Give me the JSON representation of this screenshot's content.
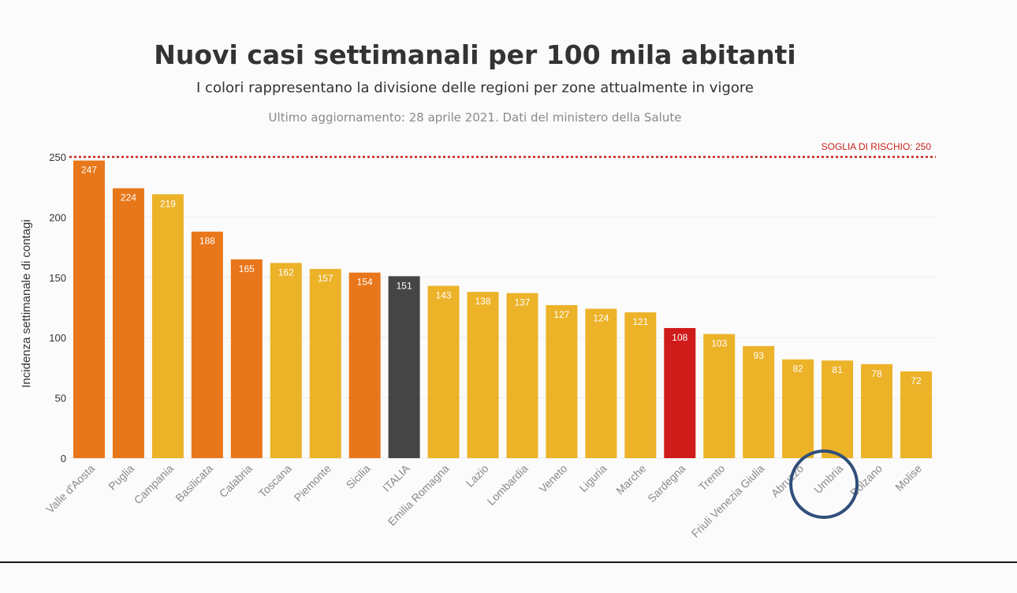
{
  "chart_data": {
    "type": "bar",
    "title": "Nuovi casi settimanali per 100 mila abitanti",
    "subtitle": "I colori rappresentano la divisione delle regioni per zone attualmente in vigore",
    "note": "Ultimo aggiornamento: 28 aprile 2021. Dati del ministero della Salute",
    "ylabel": "Incidenza settimanale di contagi",
    "xlabel": "",
    "ylim": [
      0,
      250
    ],
    "yticks": [
      0,
      50,
      100,
      150,
      200,
      250
    ],
    "grid": true,
    "threshold": {
      "value": 250,
      "label": "SOGLIA DI RISCHIO: 250",
      "color": "#c8221c"
    },
    "categories": [
      "Valle d'Aosta",
      "Puglia",
      "Campania",
      "Basilicata",
      "Calabria",
      "Toscana",
      "Piemonte",
      "Sicilia",
      "ITALIA",
      "Emilia Romagna",
      "Lazio",
      "Lombardia",
      "Veneto",
      "Liguria",
      "Marche",
      "Sardegna",
      "Trento",
      "Friuli Venezia Giulia",
      "Abruzzo",
      "Umbria",
      "Bolzano",
      "Molise"
    ],
    "values": [
      247,
      224,
      219,
      188,
      165,
      162,
      157,
      154,
      151,
      143,
      138,
      137,
      127,
      124,
      121,
      108,
      103,
      93,
      82,
      81,
      78,
      72
    ],
    "bar_colors": [
      "#e8761a",
      "#e8761a",
      "#ecb228",
      "#e8761a",
      "#e8761a",
      "#ecb228",
      "#ecb228",
      "#e8761a",
      "#454545",
      "#ecb228",
      "#ecb228",
      "#ecb228",
      "#ecb228",
      "#ecb228",
      "#ecb228",
      "#d01b1b",
      "#ecb228",
      "#ecb228",
      "#ecb228",
      "#ecb228",
      "#ecb228",
      "#ecb228"
    ],
    "highlight": {
      "category": "Umbria",
      "shape": "circle",
      "color": "#2f4f7a"
    }
  }
}
